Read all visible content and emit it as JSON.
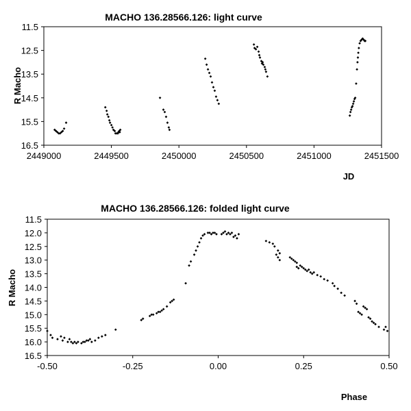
{
  "chart_data": [
    {
      "type": "scatter",
      "title": "MACHO 136.28566.126: light curve",
      "xlabel": "JD",
      "ylabel": "R Macho",
      "xlim": [
        2449000,
        2451500
      ],
      "ylim": [
        16.5,
        11.5
      ],
      "y_inverted": true,
      "grid": false,
      "x_ticks": [
        "2449000",
        "2449500",
        "2450000",
        "2450500",
        "2451000",
        "2451500"
      ],
      "y_ticks": [
        "11.5",
        "12.5",
        "13.5",
        "14.5",
        "15.5",
        "16.5"
      ],
      "series": [
        {
          "points": [
            [
              2449080,
              15.85
            ],
            [
              2449090,
              15.9
            ],
            [
              2449100,
              15.95
            ],
            [
              2449110,
              16.0
            ],
            [
              2449120,
              16.0
            ],
            [
              2449130,
              15.95
            ],
            [
              2449140,
              15.9
            ],
            [
              2449150,
              15.8
            ],
            [
              2449165,
              15.55
            ],
            [
              2449455,
              14.9
            ],
            [
              2449465,
              15.05
            ],
            [
              2449470,
              15.2
            ],
            [
              2449478,
              15.3
            ],
            [
              2449485,
              15.45
            ],
            [
              2449490,
              15.55
            ],
            [
              2449500,
              15.65
            ],
            [
              2449508,
              15.75
            ],
            [
              2449515,
              15.85
            ],
            [
              2449525,
              15.9
            ],
            [
              2449530,
              16.0
            ],
            [
              2449540,
              16.0
            ],
            [
              2449548,
              16.0
            ],
            [
              2449552,
              15.95
            ],
            [
              2449558,
              15.9
            ],
            [
              2449562,
              15.95
            ],
            [
              2449566,
              15.85
            ],
            [
              2449860,
              14.5
            ],
            [
              2449885,
              15.0
            ],
            [
              2449895,
              15.1
            ],
            [
              2449905,
              15.3
            ],
            [
              2449915,
              15.55
            ],
            [
              2449925,
              15.75
            ],
            [
              2449930,
              15.85
            ],
            [
              2450195,
              12.85
            ],
            [
              2450205,
              13.1
            ],
            [
              2450215,
              13.3
            ],
            [
              2450225,
              13.45
            ],
            [
              2450235,
              13.6
            ],
            [
              2450245,
              13.85
            ],
            [
              2450255,
              14.05
            ],
            [
              2450265,
              14.2
            ],
            [
              2450275,
              14.45
            ],
            [
              2450285,
              14.6
            ],
            [
              2450295,
              14.75
            ],
            [
              2450555,
              12.25
            ],
            [
              2450560,
              12.4
            ],
            [
              2450570,
              12.45
            ],
            [
              2450580,
              12.35
            ],
            [
              2450590,
              12.55
            ],
            [
              2450595,
              12.7
            ],
            [
              2450600,
              12.8
            ],
            [
              2450610,
              12.95
            ],
            [
              2450615,
              13.05
            ],
            [
              2450620,
              13.0
            ],
            [
              2450625,
              13.1
            ],
            [
              2450635,
              13.2
            ],
            [
              2450640,
              13.3
            ],
            [
              2450645,
              13.4
            ],
            [
              2450655,
              13.6
            ],
            [
              2451265,
              15.25
            ],
            [
              2451270,
              15.1
            ],
            [
              2451275,
              15.0
            ],
            [
              2451280,
              14.9
            ],
            [
              2451285,
              14.85
            ],
            [
              2451290,
              14.75
            ],
            [
              2451295,
              14.65
            ],
            [
              2451300,
              14.55
            ],
            [
              2451305,
              14.5
            ],
            [
              2451312,
              13.9
            ],
            [
              2451318,
              13.3
            ],
            [
              2451322,
              13.0
            ],
            [
              2451325,
              12.8
            ],
            [
              2451328,
              12.6
            ],
            [
              2451332,
              12.4
            ],
            [
              2451338,
              12.2
            ],
            [
              2451345,
              12.1
            ],
            [
              2451352,
              12.05
            ],
            [
              2451360,
              12.0
            ],
            [
              2451368,
              12.05
            ],
            [
              2451375,
              12.1
            ],
            [
              2451380,
              12.1
            ]
          ]
        }
      ]
    },
    {
      "type": "scatter",
      "title": "MACHO 136.28566.126: folded light curve",
      "xlabel": "Phase",
      "ylabel": "R Macho",
      "xlim": [
        -0.5,
        0.5
      ],
      "ylim": [
        16.5,
        11.5
      ],
      "y_inverted": true,
      "grid": false,
      "x_ticks": [
        "-0.50",
        "-0.25",
        "0.00",
        "0.25",
        "0.50"
      ],
      "y_ticks": [
        "11.5",
        "12.0",
        "12.5",
        "13.0",
        "13.5",
        "14.0",
        "14.5",
        "15.0",
        "15.5",
        "16.0",
        "16.5"
      ],
      "series": [
        {
          "points": [
            [
              -0.5,
              15.6
            ],
            [
              -0.49,
              15.75
            ],
            [
              -0.485,
              15.85
            ],
            [
              -0.47,
              15.9
            ],
            [
              -0.46,
              15.8
            ],
            [
              -0.455,
              15.95
            ],
            [
              -0.45,
              15.85
            ],
            [
              -0.44,
              16.0
            ],
            [
              -0.435,
              15.9
            ],
            [
              -0.43,
              16.0
            ],
            [
              -0.425,
              16.05
            ],
            [
              -0.42,
              16.0
            ],
            [
              -0.415,
              16.05
            ],
            [
              -0.41,
              16.0
            ],
            [
              -0.4,
              16.05
            ],
            [
              -0.395,
              16.0
            ],
            [
              -0.39,
              16.0
            ],
            [
              -0.385,
              15.95
            ],
            [
              -0.38,
              15.95
            ],
            [
              -0.375,
              15.9
            ],
            [
              -0.37,
              16.0
            ],
            [
              -0.36,
              15.95
            ],
            [
              -0.35,
              15.85
            ],
            [
              -0.34,
              15.8
            ],
            [
              -0.33,
              15.75
            ],
            [
              -0.3,
              15.55
            ],
            [
              -0.225,
              15.2
            ],
            [
              -0.22,
              15.15
            ],
            [
              -0.2,
              15.05
            ],
            [
              -0.195,
              15.0
            ],
            [
              -0.19,
              15.0
            ],
            [
              -0.18,
              14.95
            ],
            [
              -0.175,
              14.9
            ],
            [
              -0.17,
              14.9
            ],
            [
              -0.165,
              14.85
            ],
            [
              -0.16,
              14.8
            ],
            [
              -0.15,
              14.7
            ],
            [
              -0.14,
              14.55
            ],
            [
              -0.135,
              14.5
            ],
            [
              -0.13,
              14.45
            ],
            [
              -0.095,
              13.85
            ],
            [
              -0.085,
              13.2
            ],
            [
              -0.08,
              13.05
            ],
            [
              -0.07,
              12.8
            ],
            [
              -0.065,
              12.65
            ],
            [
              -0.06,
              12.5
            ],
            [
              -0.055,
              12.35
            ],
            [
              -0.05,
              12.2
            ],
            [
              -0.045,
              12.1
            ],
            [
              -0.04,
              12.05
            ],
            [
              -0.03,
              12.0
            ],
            [
              -0.025,
              12.0
            ],
            [
              -0.02,
              12.05
            ],
            [
              -0.015,
              12.0
            ],
            [
              -0.01,
              12.0
            ],
            [
              -0.005,
              12.05
            ],
            [
              0.01,
              12.05
            ],
            [
              0.015,
              12.0
            ],
            [
              0.02,
              11.95
            ],
            [
              0.025,
              12.05
            ],
            [
              0.03,
              12.0
            ],
            [
              0.035,
              12.05
            ],
            [
              0.04,
              12.0
            ],
            [
              0.045,
              12.15
            ],
            [
              0.05,
              12.1
            ],
            [
              0.055,
              12.2
            ],
            [
              0.06,
              12.05
            ],
            [
              0.14,
              12.3
            ],
            [
              0.15,
              12.35
            ],
            [
              0.16,
              12.4
            ],
            [
              0.165,
              12.5
            ],
            [
              0.17,
              12.8
            ],
            [
              0.175,
              12.9
            ],
            [
              0.18,
              12.75
            ],
            [
              0.175,
              12.65
            ],
            [
              0.18,
              13.0
            ],
            [
              0.21,
              12.9
            ],
            [
              0.215,
              12.95
            ],
            [
              0.22,
              13.0
            ],
            [
              0.225,
              13.05
            ],
            [
              0.23,
              13.1
            ],
            [
              0.23,
              13.25
            ],
            [
              0.235,
              13.3
            ],
            [
              0.24,
              13.2
            ],
            [
              0.245,
              13.25
            ],
            [
              0.25,
              13.3
            ],
            [
              0.255,
              13.35
            ],
            [
              0.26,
              13.4
            ],
            [
              0.265,
              13.35
            ],
            [
              0.27,
              13.45
            ],
            [
              0.275,
              13.5
            ],
            [
              0.28,
              13.45
            ],
            [
              0.29,
              13.55
            ],
            [
              0.3,
              13.6
            ],
            [
              0.31,
              13.7
            ],
            [
              0.32,
              13.75
            ],
            [
              0.335,
              13.85
            ],
            [
              0.34,
              13.95
            ],
            [
              0.35,
              14.05
            ],
            [
              0.36,
              14.2
            ],
            [
              0.37,
              14.3
            ],
            [
              0.4,
              14.5
            ],
            [
              0.405,
              14.6
            ],
            [
              0.41,
              14.9
            ],
            [
              0.415,
              14.95
            ],
            [
              0.42,
              15.0
            ],
            [
              0.425,
              14.7
            ],
            [
              0.43,
              14.75
            ],
            [
              0.435,
              14.8
            ],
            [
              0.44,
              15.1
            ],
            [
              0.445,
              15.15
            ],
            [
              0.45,
              15.25
            ],
            [
              0.455,
              15.3
            ],
            [
              0.46,
              15.35
            ],
            [
              0.47,
              15.45
            ],
            [
              0.485,
              15.55
            ],
            [
              0.49,
              15.45
            ],
            [
              0.495,
              15.6
            ]
          ]
        }
      ]
    }
  ]
}
